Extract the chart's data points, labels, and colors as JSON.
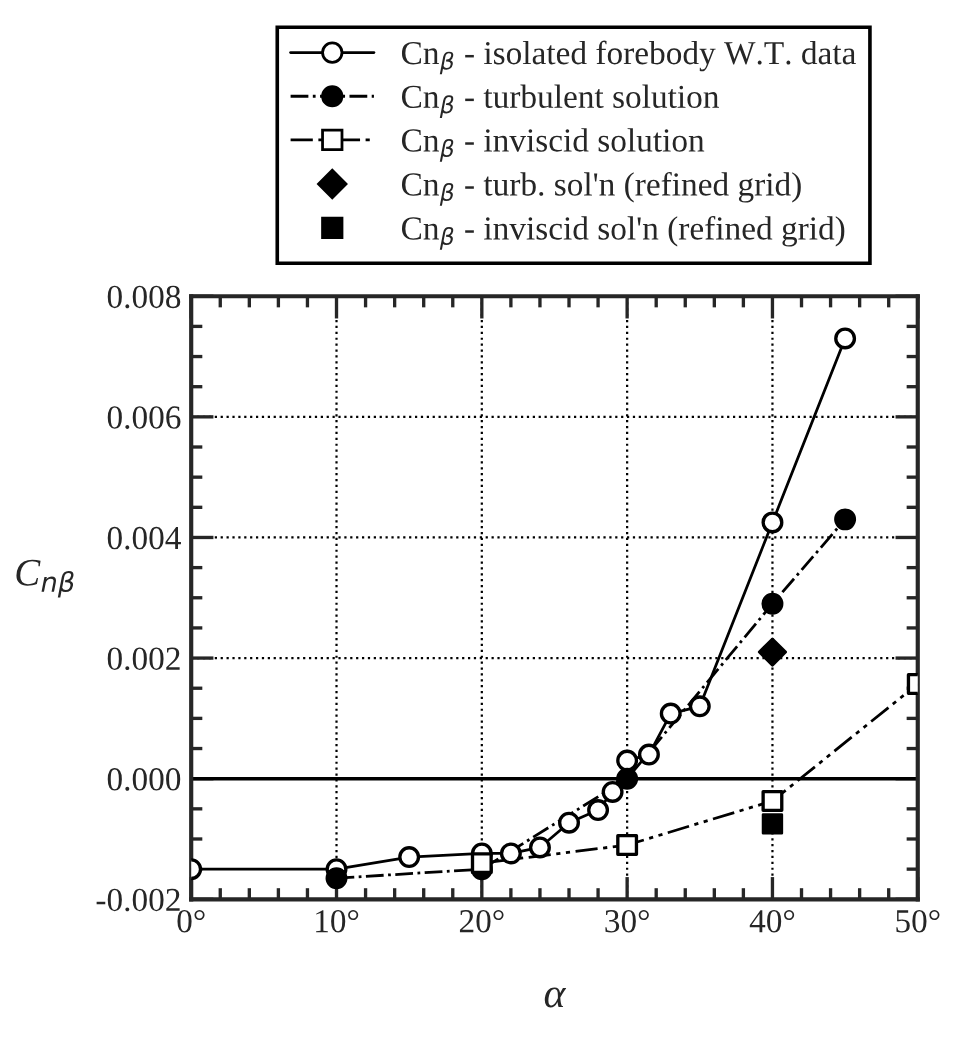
{
  "chart_data": {
    "type": "line",
    "xlabel": "α",
    "ylabel": "C$_{nβ}$",
    "xlim": [
      0,
      50
    ],
    "xticks": [
      {
        "value": 0,
        "label": "0°"
      },
      {
        "value": 10,
        "label": "10°"
      },
      {
        "value": 20,
        "label": "20°"
      },
      {
        "value": 30,
        "label": "30°"
      },
      {
        "value": 40,
        "label": "40°"
      },
      {
        "value": 50,
        "label": "50°"
      }
    ],
    "ylim": [
      -0.002,
      0.008
    ],
    "yticks": [
      {
        "value": -0.002,
        "label": "-0.002"
      },
      {
        "value": 0,
        "label": "0.000"
      },
      {
        "value": 0.002,
        "label": "0.002"
      },
      {
        "value": 0.004,
        "label": "0.004"
      },
      {
        "value": 0.006,
        "label": "0.006"
      },
      {
        "value": 0.008,
        "label": "0.008"
      }
    ],
    "grid": true,
    "legend": "top",
    "ref_lines": [
      {
        "axis": "y",
        "value": 0,
        "color": "#000000",
        "line_style": "solid"
      }
    ],
    "series": [
      {
        "name": "Cn$_{β}$ - isolated forebody W.T. data",
        "color": "#000000",
        "colors": [
          "#ffffff",
          "#ffffff",
          "#ffffff",
          "#ffffff",
          "#ffffff",
          "#ffffff",
          "#ffffff",
          "#ffffff",
          "#ffffff",
          "#ffffff",
          "#ffffff",
          "#ffffff",
          "#ffffff",
          "#ffffff",
          "#ffffff"
        ],
        "marker": "circle",
        "line_style": "solid",
        "x": [
          0,
          10,
          15,
          20,
          22,
          24,
          26,
          28,
          29,
          30,
          31.5,
          33,
          35,
          40,
          45
        ],
        "values": [
          -0.0015,
          -0.0015,
          -0.0013,
          -0.00124,
          -0.00124,
          -0.00114,
          -0.00073,
          -0.00052,
          -0.00022,
          0.0003,
          0.0004,
          0.00108,
          0.0012,
          0.00425,
          0.0073
        ]
      },
      {
        "name": "Cn$_{β}$ - turbulent solution",
        "color": "#000000",
        "marker": "circle",
        "line_style": "dashdot",
        "x": [
          10,
          20,
          30,
          40,
          45
        ],
        "values": [
          -0.00165,
          -0.0015,
          0.0,
          0.0029,
          0.0043
        ]
      },
      {
        "name": "Cn$_{β}$ - inviscid solution",
        "color": "#000000",
        "colors": [
          "#ffffff",
          "#ffffff",
          "#ffffff",
          "#ffffff"
        ],
        "marker": "square",
        "line_style": "dashdotdot",
        "x": [
          20,
          30,
          40,
          50
        ],
        "values": [
          -0.0014,
          -0.0011,
          -0.00037,
          0.00157
        ]
      },
      {
        "name": "Cn$_{β}$ - turb. sol'n (refined grid)",
        "type": "scatter",
        "color": "#000000",
        "marker": "diamond",
        "x": [
          40
        ],
        "values": [
          0.0021
        ]
      },
      {
        "name": "Cn$_{β}$ - inviscid sol'n (refined grid)",
        "type": "scatter",
        "color": "#000000",
        "marker": "square",
        "x": [
          40
        ],
        "values": [
          -0.00075
        ]
      }
    ]
  }
}
